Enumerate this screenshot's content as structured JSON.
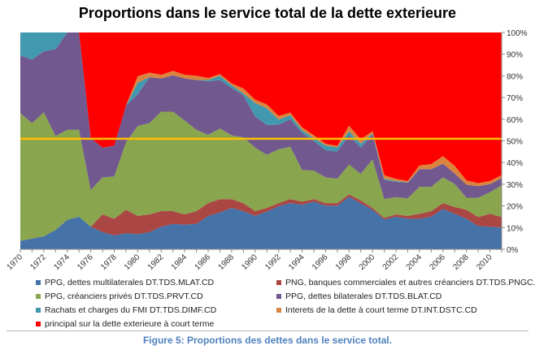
{
  "chart_data": {
    "type": "area",
    "stacked": "percent",
    "title": "Proportions dans le service total de la dette exterieure",
    "xlabel": "",
    "ylabel": "",
    "x": [
      1970,
      1971,
      1972,
      1973,
      1974,
      1975,
      1976,
      1977,
      1978,
      1979,
      1980,
      1981,
      1982,
      1983,
      1984,
      1985,
      1986,
      1987,
      1988,
      1989,
      1990,
      1991,
      1992,
      1993,
      1994,
      1995,
      1996,
      1997,
      1998,
      1999,
      2000,
      2001,
      2002,
      2003,
      2004,
      2005,
      2006,
      2007,
      2008,
      2009,
      2010,
      2011
    ],
    "x_tick_labels": [
      "1970",
      "1972",
      "1974",
      "1976",
      "1978",
      "1980",
      "1982",
      "1984",
      "1986",
      "1988",
      "1990",
      "1992",
      "1994",
      "1996",
      "1998",
      "2000",
      "2002",
      "2004",
      "2006",
      "2008",
      "2010"
    ],
    "y_tick_labels": [
      "0%",
      "10%",
      "20%",
      "30%",
      "40%",
      "50%",
      "60%",
      "70%",
      "80%",
      "90%",
      "100%"
    ],
    "ylim": [
      0,
      100
    ],
    "y_axis_side": "right",
    "grid": false,
    "legend_position": "bottom",
    "series": [
      {
        "name": "PPG, dettes multilaterales DT.TDS.MLAT.CD",
        "color": "#4572A7",
        "values": [
          3.9,
          4.9,
          6,
          8.9,
          13.6,
          15.1,
          10.4,
          7.9,
          6.4,
          7.4,
          7,
          7.9,
          10.4,
          11.7,
          11.4,
          11.7,
          15.4,
          17,
          19.1,
          17.6,
          15.4,
          17.4,
          19.9,
          21.3,
          20.5,
          22,
          20.1,
          20.1,
          24.2,
          21.2,
          18.2,
          13.7,
          15,
          14.1,
          14.1,
          15.1,
          18.6,
          16.4,
          14.1,
          10.7,
          10.4,
          10.1
        ]
      },
      {
        "name": "PNG, banques commerciales et autres créanciers DT.TDS.PNGC.CD",
        "color": "#AA4643",
        "values": [
          0,
          0,
          0,
          0,
          0,
          0,
          0,
          8.2,
          7.7,
          10.8,
          8.4,
          8.2,
          7.2,
          5.9,
          4.7,
          5.9,
          5.9,
          6.1,
          4,
          3.7,
          2.2,
          1.7,
          1.4,
          1.9,
          1.5,
          1.2,
          1.2,
          1.2,
          1.1,
          1.4,
          0.9,
          0.8,
          1.1,
          1.3,
          2.3,
          2.5,
          2.7,
          3.1,
          4.1,
          4.2,
          6,
          4.8
        ]
      },
      {
        "name": "PPG, créanciers privés DT.TDS.PRVT.CD",
        "color": "#89A54E",
        "values": [
          58.9,
          53.3,
          57.2,
          43.4,
          41.5,
          40,
          16.9,
          17.1,
          19.5,
          31.2,
          41.5,
          42.1,
          45.9,
          45.9,
          43.3,
          37.5,
          31.5,
          32.6,
          29.5,
          30.3,
          29.3,
          24.5,
          24.8,
          24.1,
          14.6,
          13.1,
          11.9,
          11.3,
          13.8,
          12.2,
          22.4,
          8.7,
          8,
          8.1,
          12.4,
          11.2,
          11.9,
          10.6,
          5.6,
          8.9,
          9.9,
          14.6
        ]
      },
      {
        "name": "PPG, dettes bilaterales DT.TDS.BLAT.CD",
        "color": "#71588F",
        "values": [
          26.6,
          29.3,
          28.1,
          40,
          44.9,
          44.9,
          24,
          13.7,
          14.2,
          16.9,
          14.6,
          21.2,
          15.3,
          16.8,
          19.4,
          23,
          24.7,
          22.4,
          21.8,
          19.4,
          14.4,
          13.7,
          11.4,
          12.7,
          17.2,
          13.7,
          12.5,
          12.5,
          13.5,
          12.1,
          11.4,
          8.8,
          7,
          7.2,
          8.2,
          8.2,
          6.3,
          4.9,
          6,
          5.3,
          3.8,
          3.3
        ]
      },
      {
        "name": "Rachats et charges du FMI DT.TDS.DIMF.CD",
        "color": "#4198AF",
        "values": [
          10.6,
          12.5,
          8.7,
          7.7,
          0,
          0,
          0,
          0,
          0,
          0,
          5.4,
          0,
          0,
          0,
          0,
          0,
          0.6,
          1.9,
          1.3,
          0.9,
          6.2,
          7.7,
          2.3,
          1.9,
          1.2,
          1.3,
          2.2,
          1.9,
          1.8,
          1.9,
          0.6,
          0.5,
          0.4,
          0.2,
          0,
          0,
          0,
          0,
          0,
          0,
          0,
          0
        ]
      },
      {
        "name": "Interets de la dette à court terme  DT.INT.DSTC.CD",
        "color": "#DB843D",
        "values": [
          0,
          0,
          0,
          0,
          0,
          0,
          0,
          0,
          0,
          0,
          2.9,
          2.1,
          1.7,
          2,
          1.7,
          1.9,
          0.9,
          0.8,
          0.8,
          2.3,
          1.5,
          1.8,
          1.7,
          1.1,
          1.3,
          1.3,
          0.8,
          0.7,
          2.6,
          1.9,
          1,
          1.7,
          1,
          0.6,
          1.7,
          2.3,
          3.5,
          3.5,
          2,
          1.4,
          1.4,
          1.4
        ]
      },
      {
        "name": "principal sur la dette exterieure à court terme",
        "color": "#FF0000",
        "values": [
          0,
          0,
          0,
          0,
          0,
          0,
          48.7,
          53.1,
          52.2,
          33.7,
          20.2,
          18.5,
          19.5,
          17.7,
          19.5,
          20,
          21,
          19.2,
          23.5,
          25.8,
          31,
          33.2,
          38.5,
          37,
          43.7,
          47.4,
          51.3,
          52.3,
          43,
          49.3,
          45.5,
          65.8,
          67.5,
          68.5,
          61.3,
          60.7,
          57,
          61.5,
          68.2,
          69.5,
          68.5,
          65.8
        ]
      }
    ],
    "reference_line": {
      "value": 51,
      "color": "#FFC000"
    }
  },
  "caption": "Figure 5: Proportions des dettes dans le service total."
}
